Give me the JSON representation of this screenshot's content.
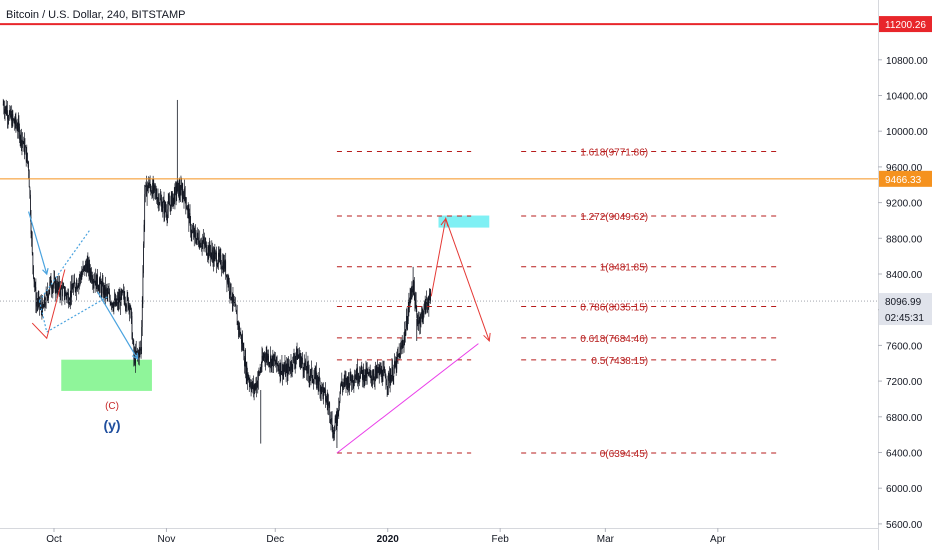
{
  "symbol_header": "Bitcoin / U.S. Dollar, 240, BITSTAMP",
  "colors": {
    "candle": "#131722",
    "red_line": "#e8262b",
    "orange_line": "#f5921e",
    "fib": "#b71c1c",
    "target_box": "#7ff0f4",
    "green_box": "#8ff59a",
    "magenta": "#ea3ee9",
    "arrow_red": "#e53935",
    "arrow_blue": "#4aa3df",
    "wave_label": "#1f4e9e",
    "wave_c": "#c62828"
  },
  "chart_data": {
    "type": "candlestick",
    "title": "Bitcoin / U.S. Dollar, 240, BITSTAMP",
    "x_ticks": [
      "Oct",
      "Nov",
      "Dec",
      "2020",
      "Feb",
      "Mar",
      "Apr"
    ],
    "y_ticks": [
      5600,
      6000,
      6400,
      6800,
      7200,
      7600,
      8000,
      8400,
      8800,
      9200,
      9600,
      10000,
      10400,
      10800
    ],
    "ylim": [
      5450,
      11450
    ],
    "price_path": [
      [
        "Sep 17",
        10300
      ],
      [
        "Sep 19",
        10150
      ],
      [
        "Sep 21",
        10050
      ],
      [
        "Sep 23",
        9800
      ],
      [
        "Sep 24",
        9600
      ],
      [
        "Sep 25",
        8600
      ],
      [
        "Sep 26",
        8100
      ],
      [
        "Sep 28",
        8000
      ],
      [
        "Sep 30",
        8300
      ],
      [
        "Oct 2",
        8250
      ],
      [
        "Oct 5",
        8150
      ],
      [
        "Oct 8",
        8350
      ],
      [
        "Oct 10",
        8500
      ],
      [
        "Oct 12",
        8350
      ],
      [
        "Oct 15",
        8200
      ],
      [
        "Oct 18",
        8050
      ],
      [
        "Oct 20",
        8150
      ],
      [
        "Oct 22",
        8050
      ],
      [
        "Oct 23",
        7450
      ],
      [
        "Oct 25",
        7550
      ],
      [
        "Oct 26",
        9300
      ],
      [
        "Oct 27",
        9400
      ],
      [
        "Oct 29",
        9300
      ],
      [
        "Nov 1",
        9100
      ],
      [
        "Nov 4",
        9350
      ],
      [
        "Nov 6",
        9300
      ],
      [
        "Nov 8",
        8850
      ],
      [
        "Nov 11",
        8750
      ],
      [
        "Nov 14",
        8600
      ],
      [
        "Nov 17",
        8500
      ],
      [
        "Nov 19",
        8150
      ],
      [
        "Nov 22",
        7600
      ],
      [
        "Nov 23",
        7300
      ],
      [
        "Nov 25",
        7100
      ],
      [
        "Nov 26",
        7200
      ],
      [
        "Nov 28",
        7500
      ],
      [
        "Dec 1",
        7400
      ],
      [
        "Dec 4",
        7300
      ],
      [
        "Dec 7",
        7500
      ],
      [
        "Dec 10",
        7300
      ],
      [
        "Dec 13",
        7200
      ],
      [
        "Dec 16",
        6900
      ],
      [
        "Dec 17",
        6600
      ],
      [
        "Dec 18",
        6800
      ],
      [
        "Dec 19",
        7150
      ],
      [
        "Dec 21",
        7200
      ],
      [
        "Dec 24",
        7300
      ],
      [
        "Dec 27",
        7250
      ],
      [
        "Dec 30",
        7300
      ],
      [
        "Jan 1",
        7200
      ],
      [
        "Jan 3",
        7350
      ],
      [
        "Jan 5",
        7600
      ],
      [
        "Jan 6",
        7800
      ],
      [
        "Jan 7",
        8100
      ],
      [
        "Jan 8",
        8300
      ],
      [
        "Jan 9",
        7900
      ],
      [
        "Jan 10",
        7900
      ],
      [
        "Jan 12",
        8100
      ],
      [
        "Jan 13",
        8100
      ]
    ],
    "horizontal_lines": [
      {
        "price": 11200.26,
        "label": "11200.26",
        "color": "#e8262b"
      },
      {
        "price": 9466.33,
        "label": "9466.33",
        "color": "#f5921e"
      }
    ],
    "last_price": {
      "label": "8096.99",
      "price": 8096.99,
      "countdown": "02:45:31"
    },
    "fib_levels": [
      {
        "label": "1.618(9771.86)",
        "price": 9771.86
      },
      {
        "label": "1.272(9049.62)",
        "price": 9049.62
      },
      {
        "label": "1(8481.85)",
        "price": 8481.85
      },
      {
        "label": "0.786(8035.15)",
        "price": 8035.15
      },
      {
        "label": "0.618(7684.46)",
        "price": 7684.46
      },
      {
        "label": "0.5(7438.15)",
        "price": 7438.15
      },
      {
        "label": "0(6394.45)",
        "price": 6394.45
      }
    ],
    "annotations": {
      "wave_c": "(C)",
      "wave_y": "(y)"
    }
  }
}
